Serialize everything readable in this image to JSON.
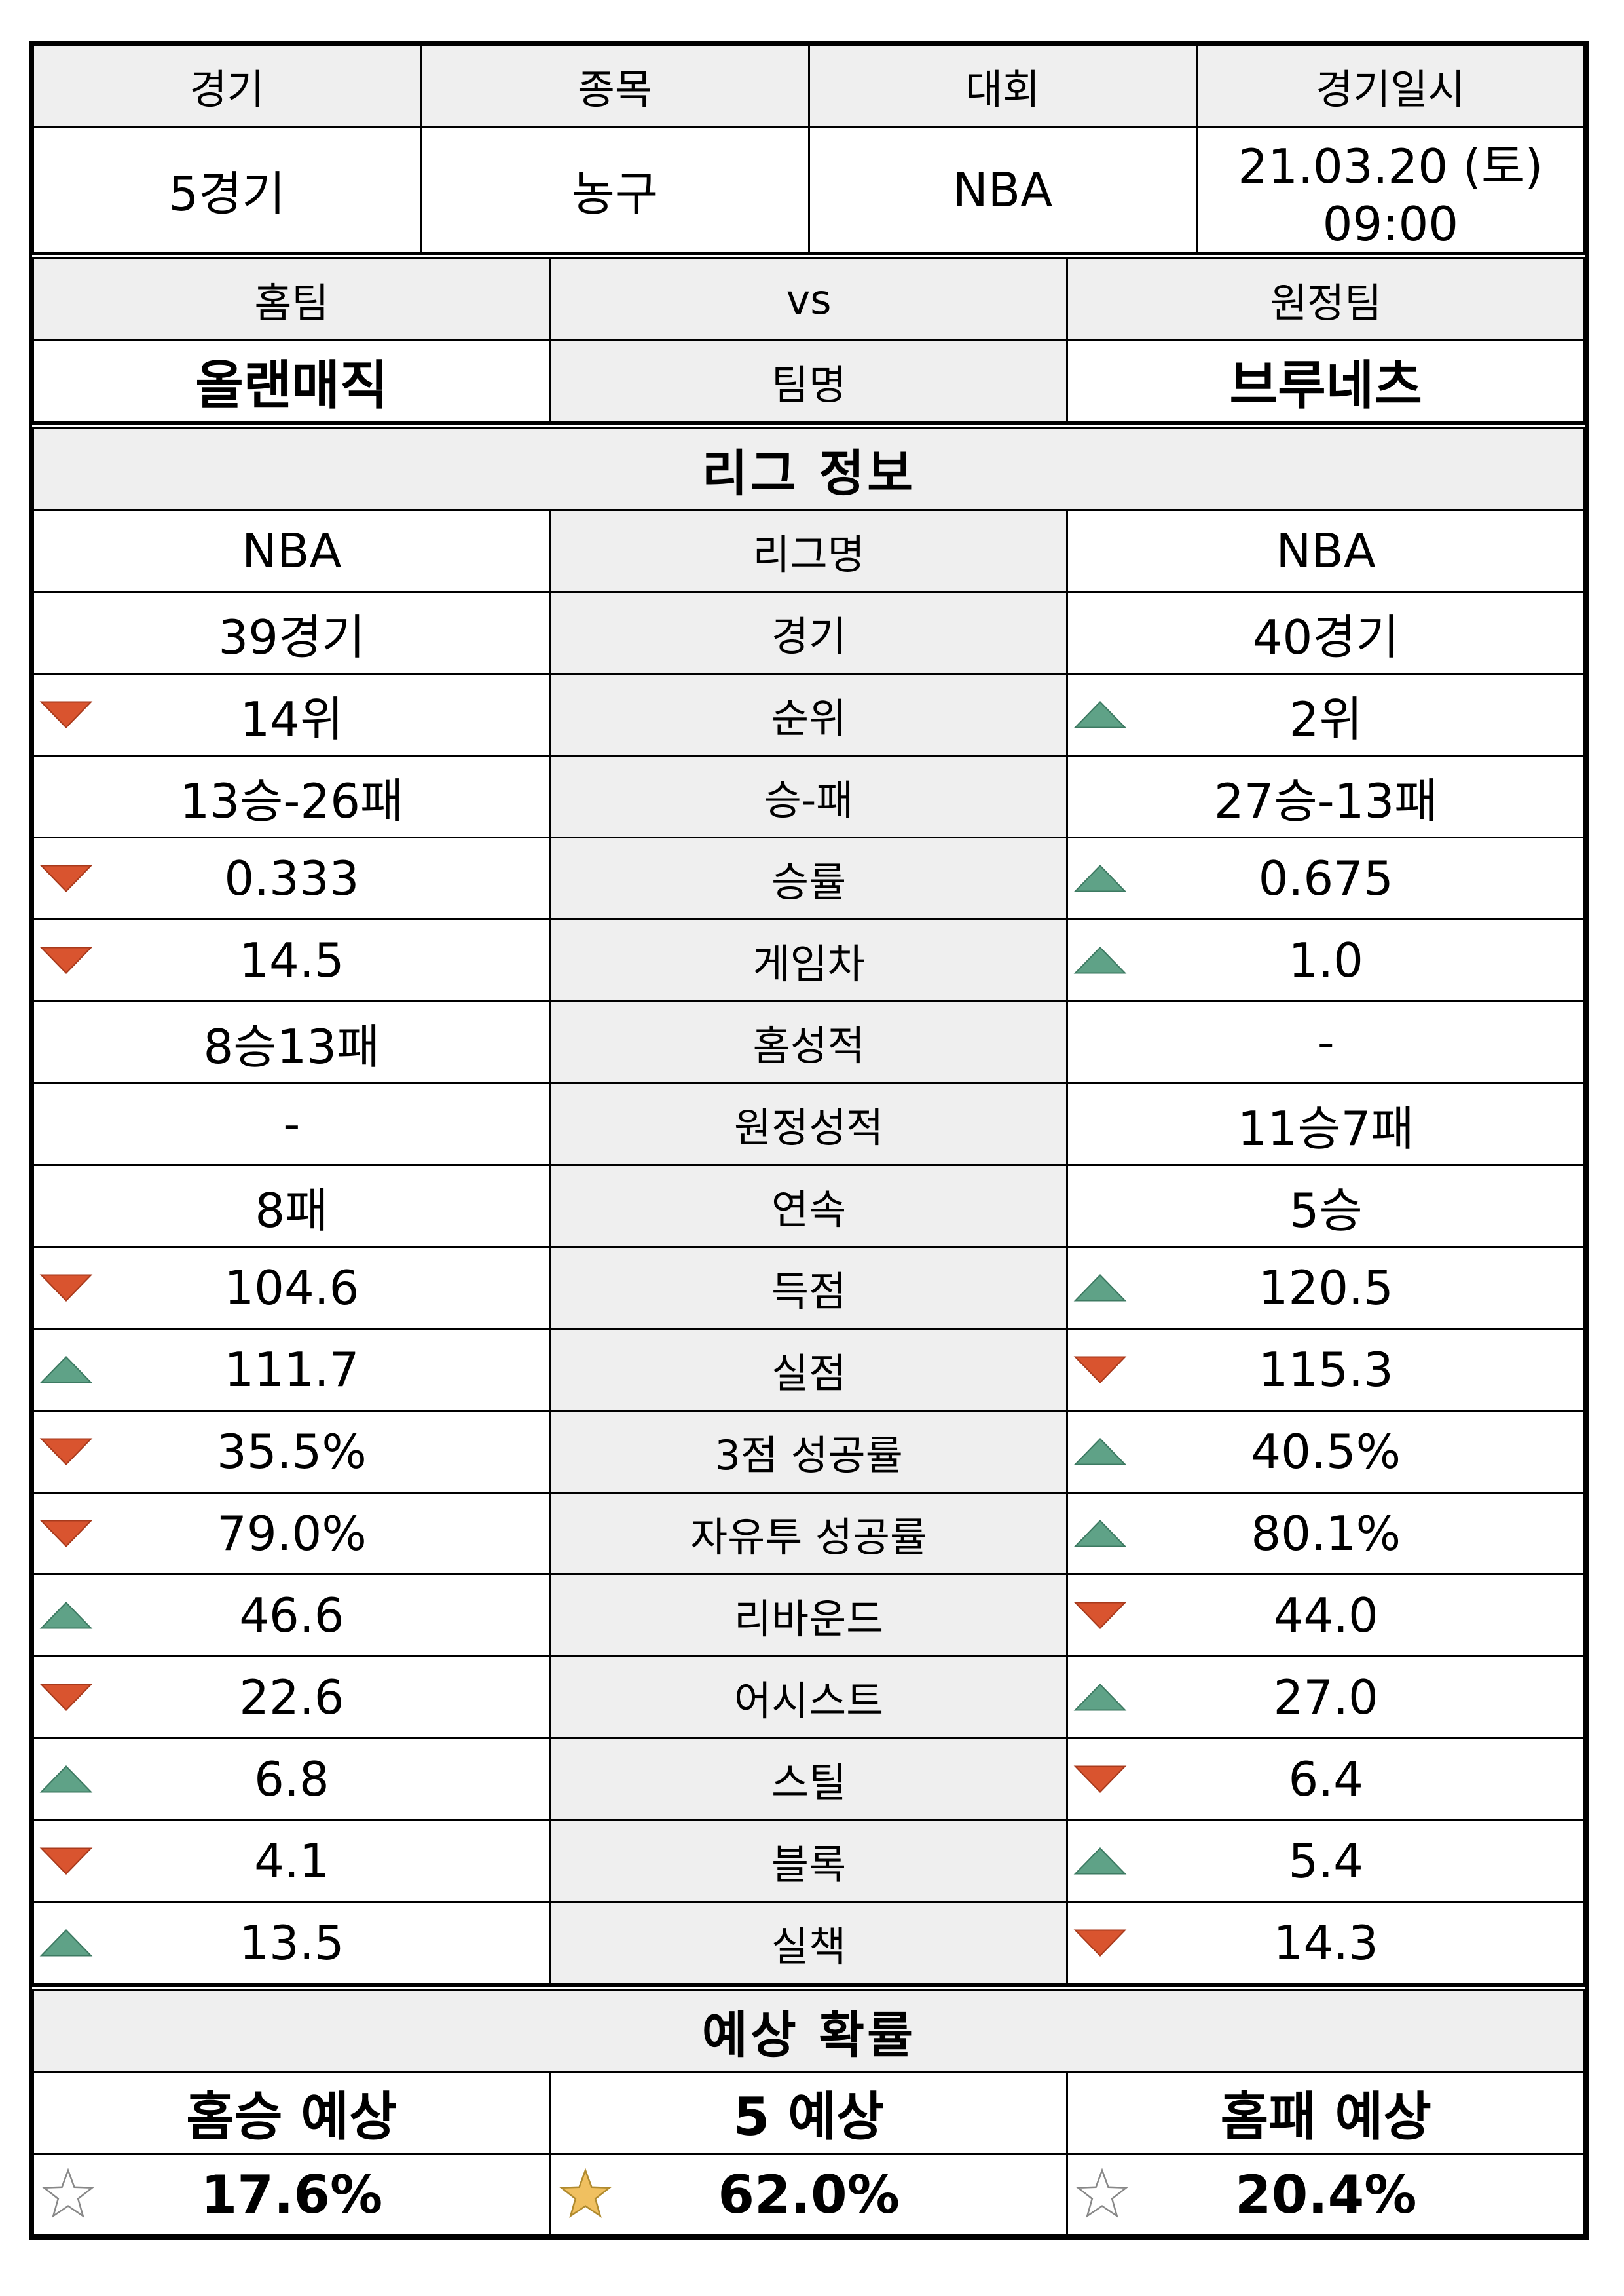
{
  "match_header": {
    "labels": [
      "경기",
      "종목",
      "대회",
      "경기일시"
    ],
    "values": [
      "5경기",
      "농구",
      "NBA",
      "21.03.20 (토) 09:00"
    ]
  },
  "teams": {
    "home_label": "홈팀",
    "vs_label": "vs",
    "away_label": "원정팀",
    "home_name": "올랜매직",
    "team_name_label": "팀명",
    "away_name": "브루네츠"
  },
  "league": {
    "title": "리그 정보",
    "rows": [
      {
        "label": "리그명",
        "home": "NBA",
        "away": "NBA",
        "home_trend": "",
        "away_trend": ""
      },
      {
        "label": "경기",
        "home": "39경기",
        "away": "40경기",
        "home_trend": "",
        "away_trend": ""
      },
      {
        "label": "순위",
        "home": "14위",
        "away": "2위",
        "home_trend": "down",
        "away_trend": "up"
      },
      {
        "label": "승-패",
        "home": "13승-26패",
        "away": "27승-13패",
        "home_trend": "",
        "away_trend": ""
      },
      {
        "label": "승률",
        "home": "0.333",
        "away": "0.675",
        "home_trend": "down",
        "away_trend": "up"
      },
      {
        "label": "게임차",
        "home": "14.5",
        "away": "1.0",
        "home_trend": "down",
        "away_trend": "up"
      },
      {
        "label": "홈성적",
        "home": "8승13패",
        "away": "-",
        "home_trend": "",
        "away_trend": ""
      },
      {
        "label": "원정성적",
        "home": "-",
        "away": "11승7패",
        "home_trend": "",
        "away_trend": ""
      },
      {
        "label": "연속",
        "home": "8패",
        "away": "5승",
        "home_trend": "",
        "away_trend": ""
      },
      {
        "label": "득점",
        "home": "104.6",
        "away": "120.5",
        "home_trend": "down",
        "away_trend": "up"
      },
      {
        "label": "실점",
        "home": "111.7",
        "away": "115.3",
        "home_trend": "up",
        "away_trend": "down"
      },
      {
        "label": "3점 성공률",
        "home": "35.5%",
        "away": "40.5%",
        "home_trend": "down",
        "away_trend": "up"
      },
      {
        "label": "자유투 성공률",
        "home": "79.0%",
        "away": "80.1%",
        "home_trend": "down",
        "away_trend": "up"
      },
      {
        "label": "리바운드",
        "home": "46.6",
        "away": "44.0",
        "home_trend": "up",
        "away_trend": "down"
      },
      {
        "label": "어시스트",
        "home": "22.6",
        "away": "27.0",
        "home_trend": "down",
        "away_trend": "up"
      },
      {
        "label": "스틸",
        "home": "6.8",
        "away": "6.4",
        "home_trend": "up",
        "away_trend": "down"
      },
      {
        "label": "블록",
        "home": "4.1",
        "away": "5.4",
        "home_trend": "down",
        "away_trend": "up"
      },
      {
        "label": "실책",
        "home": "13.5",
        "away": "14.3",
        "home_trend": "up",
        "away_trend": "down"
      }
    ]
  },
  "prediction": {
    "title": "예상 확률",
    "labels": [
      "홈승 예상",
      "5 예상",
      "홈패 예상"
    ],
    "values": [
      "17.6%",
      "62.0%",
      "20.4%"
    ],
    "stars": [
      "empty",
      "filled",
      "empty"
    ]
  },
  "colors": {
    "down_arrow": "#d9542f",
    "up_arrow": "#5fa287",
    "star_fill": "#f0c060",
    "header_bg": "#efefef"
  }
}
